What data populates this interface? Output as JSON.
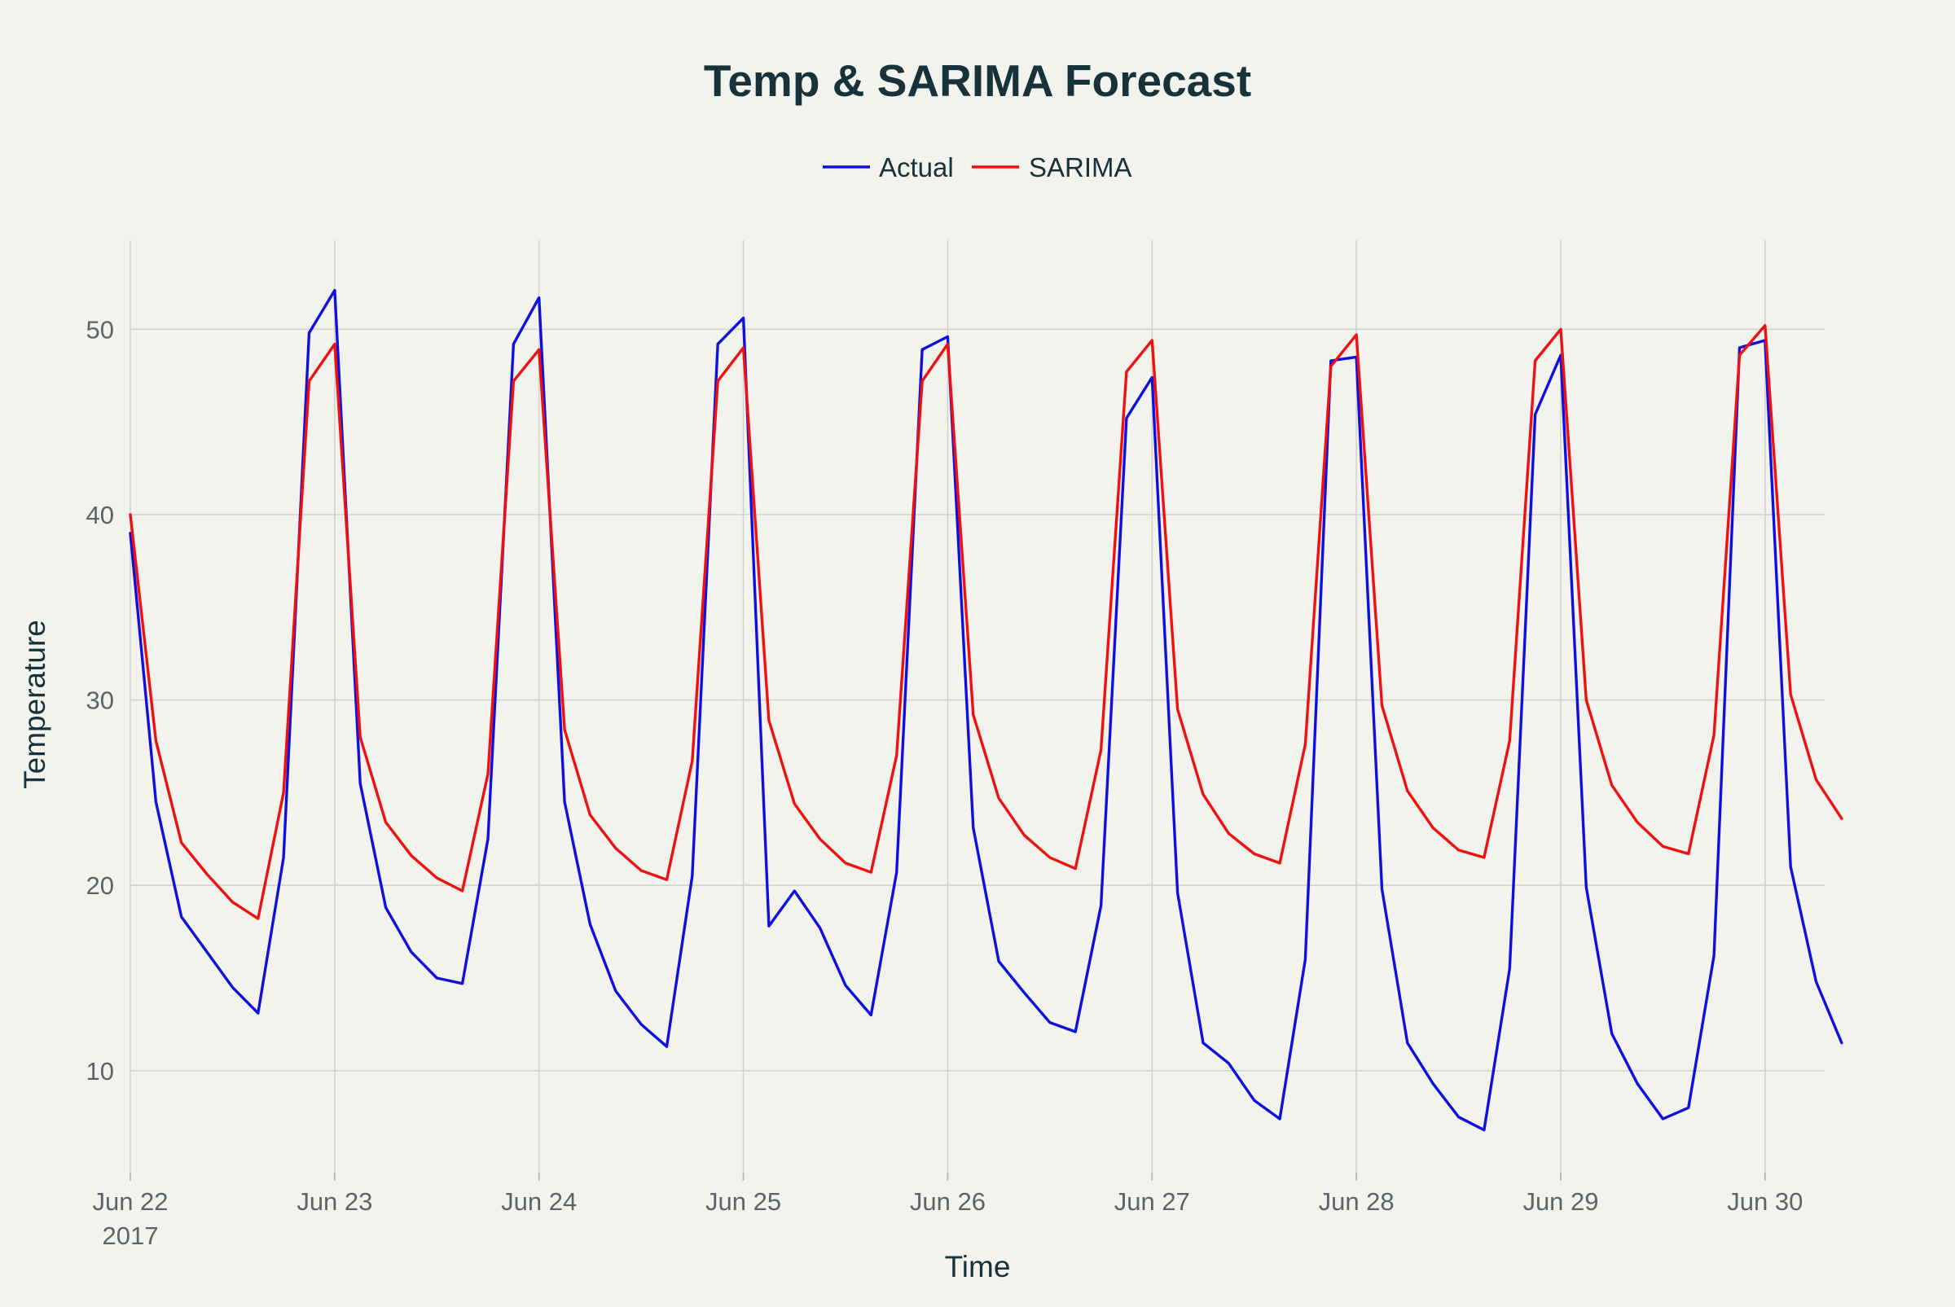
{
  "chart_data": {
    "type": "line",
    "title": "Temp & SARIMA Forecast",
    "xlabel": "Time",
    "ylabel": "Temperature",
    "x_start": "2017-06-22 00:00",
    "x_step_hours": 3,
    "xlim": [
      "2017-06-22 00:00",
      "2017-06-30 07:00"
    ],
    "ylim": [
      4.5,
      54.8
    ],
    "y_ticks": [
      10,
      20,
      30,
      40,
      50
    ],
    "x_ticks": [
      {
        "label": "Jun 22",
        "sublabel": "2017"
      },
      {
        "label": "Jun 23",
        "sublabel": ""
      },
      {
        "label": "Jun 24",
        "sublabel": ""
      },
      {
        "label": "Jun 25",
        "sublabel": ""
      },
      {
        "label": "Jun 26",
        "sublabel": ""
      },
      {
        "label": "Jun 27",
        "sublabel": ""
      },
      {
        "label": "Jun 28",
        "sublabel": ""
      },
      {
        "label": "Jun 29",
        "sublabel": ""
      },
      {
        "label": "Jun 30",
        "sublabel": ""
      }
    ],
    "grid": true,
    "legend_position": "top-center",
    "series": [
      {
        "name": "Actual",
        "color": "#1010dd",
        "values": [
          39.0,
          24.5,
          18.3,
          16.4,
          14.5,
          13.1,
          21.5,
          49.8,
          52.1,
          25.5,
          18.8,
          16.4,
          15.0,
          14.7,
          22.5,
          49.2,
          51.7,
          24.5,
          17.9,
          14.3,
          12.5,
          11.3,
          20.5,
          49.2,
          50.6,
          17.8,
          19.7,
          17.7,
          14.6,
          13.0,
          20.7,
          48.9,
          49.6,
          23.1,
          15.9,
          14.2,
          12.6,
          12.1,
          18.9,
          45.2,
          47.4,
          19.6,
          11.5,
          10.4,
          8.4,
          7.4,
          16.0,
          48.3,
          48.5,
          19.8,
          11.5,
          9.3,
          7.5,
          6.8,
          15.5,
          45.4,
          48.6,
          19.9,
          12.0,
          9.3,
          7.4,
          8.0,
          16.2,
          49.0,
          49.4,
          21.0,
          14.8,
          11.5
        ]
      },
      {
        "name": "SARIMA",
        "color": "#ee1111",
        "values": [
          40.0,
          27.8,
          22.3,
          20.6,
          19.1,
          18.2,
          25.0,
          47.2,
          49.2,
          28.0,
          23.4,
          21.6,
          20.4,
          19.7,
          26.0,
          47.2,
          48.9,
          28.4,
          23.8,
          22.0,
          20.8,
          20.3,
          26.7,
          47.2,
          49.0,
          28.9,
          24.4,
          22.5,
          21.2,
          20.7,
          27.0,
          47.2,
          49.2,
          29.2,
          24.7,
          22.7,
          21.5,
          20.9,
          27.3,
          47.7,
          49.4,
          29.5,
          24.9,
          22.8,
          21.7,
          21.2,
          27.6,
          48.0,
          49.7,
          29.7,
          25.1,
          23.1,
          21.9,
          21.5,
          27.8,
          48.3,
          50.0,
          30.0,
          25.4,
          23.4,
          22.1,
          21.7,
          28.1,
          48.6,
          50.2,
          30.3,
          25.7,
          23.6
        ]
      }
    ]
  }
}
